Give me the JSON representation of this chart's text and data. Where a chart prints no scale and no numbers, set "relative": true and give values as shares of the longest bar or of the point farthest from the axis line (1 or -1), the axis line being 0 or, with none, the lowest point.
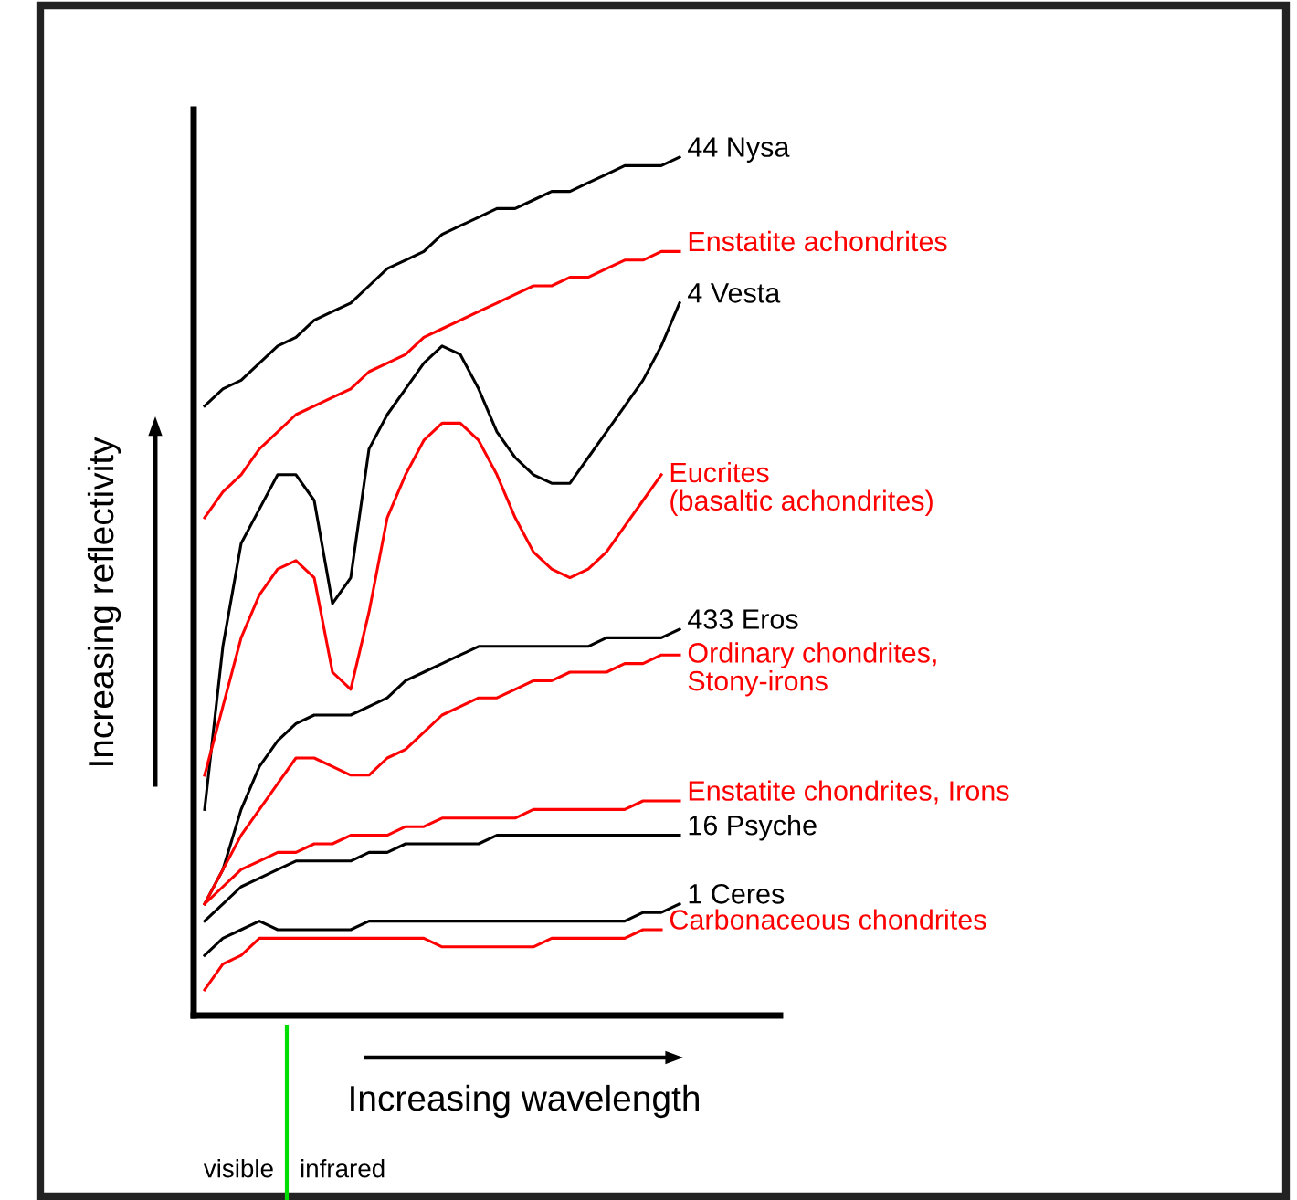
{
  "chart_data": {
    "type": "line",
    "relative": true,
    "xlabel": "Increasing wavelength",
    "ylabel": "Increasing reflectivity",
    "legend": false,
    "grid": false,
    "marker": "none",
    "line_style": "solid",
    "categories": [
      null,
      null,
      null,
      null,
      null,
      null,
      null,
      null,
      null,
      null,
      null,
      null,
      null,
      null,
      null,
      null,
      null,
      null,
      null,
      null,
      null,
      null,
      null,
      null,
      null,
      null,
      null
    ],
    "annotations": [
      "visible",
      "infrared"
    ],
    "series": [
      {
        "name": "44 Nysa",
        "color": "#000000",
        "values": [
          0.71,
          0.73,
          0.74,
          0.76,
          0.78,
          0.79,
          0.81,
          0.82,
          0.83,
          0.85,
          0.87,
          0.88,
          0.89,
          0.91,
          0.92,
          0.93,
          0.94,
          0.94,
          0.95,
          0.96,
          0.96,
          0.97,
          0.98,
          0.99,
          0.99,
          0.99,
          1
        ]
      },
      {
        "name": "Enstatite achondrites",
        "color": "#ff0000",
        "values": [
          0.58,
          0.61,
          0.63,
          0.66,
          0.68,
          0.7,
          0.71,
          0.72,
          0.73,
          0.75,
          0.76,
          0.77,
          0.79,
          0.8,
          0.81,
          0.82,
          0.83,
          0.84,
          0.85,
          0.85,
          0.86,
          0.86,
          0.87,
          0.88,
          0.88,
          0.89,
          0.89
        ]
      },
      {
        "name": "4 Vesta",
        "color": "#000000",
        "values": [
          0.24,
          0.43,
          0.55,
          0.59,
          0.63,
          0.63,
          0.6,
          0.48,
          0.51,
          0.66,
          0.7,
          0.73,
          0.76,
          0.78,
          0.77,
          0.73,
          0.68,
          0.65,
          0.63,
          0.62,
          0.62,
          0.65,
          0.68,
          0.71,
          0.74,
          0.78,
          0.83
        ]
      },
      {
        "name": "Eucrites\n(basaltic achondrites)",
        "color": "#ff0000",
        "values": [
          0.28,
          0.36,
          0.44,
          0.49,
          0.52,
          0.53,
          0.51,
          0.4,
          0.38,
          0.47,
          0.58,
          0.63,
          0.67,
          0.69,
          0.69,
          0.67,
          0.63,
          0.58,
          0.54,
          0.52,
          0.51,
          0.52,
          0.54,
          0.57,
          0.6,
          0.63,
          null
        ]
      },
      {
        "name": "433 Eros",
        "color": "#000000",
        "values": [
          0.13,
          0.17,
          0.24,
          0.29,
          0.32,
          0.34,
          0.35,
          0.35,
          0.35,
          0.36,
          0.37,
          0.39,
          0.4,
          0.41,
          0.42,
          0.43,
          0.43,
          0.43,
          0.43,
          0.43,
          0.43,
          0.43,
          0.44,
          0.44,
          0.44,
          0.44,
          0.45
        ]
      },
      {
        "name": "Ordinary chondrites,\nStony-irons",
        "color": "#ff0000",
        "values": [
          0.13,
          0.17,
          0.21,
          0.24,
          0.27,
          0.3,
          0.3,
          0.29,
          0.28,
          0.28,
          0.3,
          0.31,
          0.33,
          0.35,
          0.36,
          0.37,
          0.37,
          0.38,
          0.39,
          0.39,
          0.4,
          0.4,
          0.4,
          0.41,
          0.41,
          0.42,
          0.42
        ]
      },
      {
        "name": "Enstatite chondrites, Irons",
        "color": "#ff0000",
        "values": [
          0.13,
          0.15,
          0.17,
          0.18,
          0.19,
          0.19,
          0.2,
          0.2,
          0.21,
          0.21,
          0.21,
          0.22,
          0.22,
          0.23,
          0.23,
          0.23,
          0.23,
          0.23,
          0.24,
          0.24,
          0.24,
          0.24,
          0.24,
          0.24,
          0.25,
          0.25,
          0.25
        ]
      },
      {
        "name": "16 Psyche",
        "color": "#000000",
        "values": [
          0.11,
          0.13,
          0.15,
          0.16,
          0.17,
          0.18,
          0.18,
          0.18,
          0.18,
          0.19,
          0.19,
          0.2,
          0.2,
          0.2,
          0.2,
          0.2,
          0.21,
          0.21,
          0.21,
          0.21,
          0.21,
          0.21,
          0.21,
          0.21,
          0.21,
          0.21,
          0.21
        ]
      },
      {
        "name": "1 Ceres",
        "color": "#000000",
        "values": [
          0.07,
          0.09,
          0.1,
          0.11,
          0.1,
          0.1,
          0.1,
          0.1,
          0.1,
          0.11,
          0.11,
          0.11,
          0.11,
          0.11,
          0.11,
          0.11,
          0.11,
          0.11,
          0.11,
          0.11,
          0.11,
          0.11,
          0.11,
          0.11,
          0.12,
          0.12,
          0.13
        ]
      },
      {
        "name": "Carbonaceous chondrites",
        "color": "#ff0000",
        "values": [
          0.03,
          0.06,
          0.07,
          0.09,
          0.09,
          0.09,
          0.09,
          0.09,
          0.09,
          0.09,
          0.09,
          0.09,
          0.09,
          0.08,
          0.08,
          0.08,
          0.08,
          0.08,
          0.08,
          0.09,
          0.09,
          0.09,
          0.09,
          0.09,
          0.1,
          0.1,
          null
        ]
      }
    ]
  }
}
